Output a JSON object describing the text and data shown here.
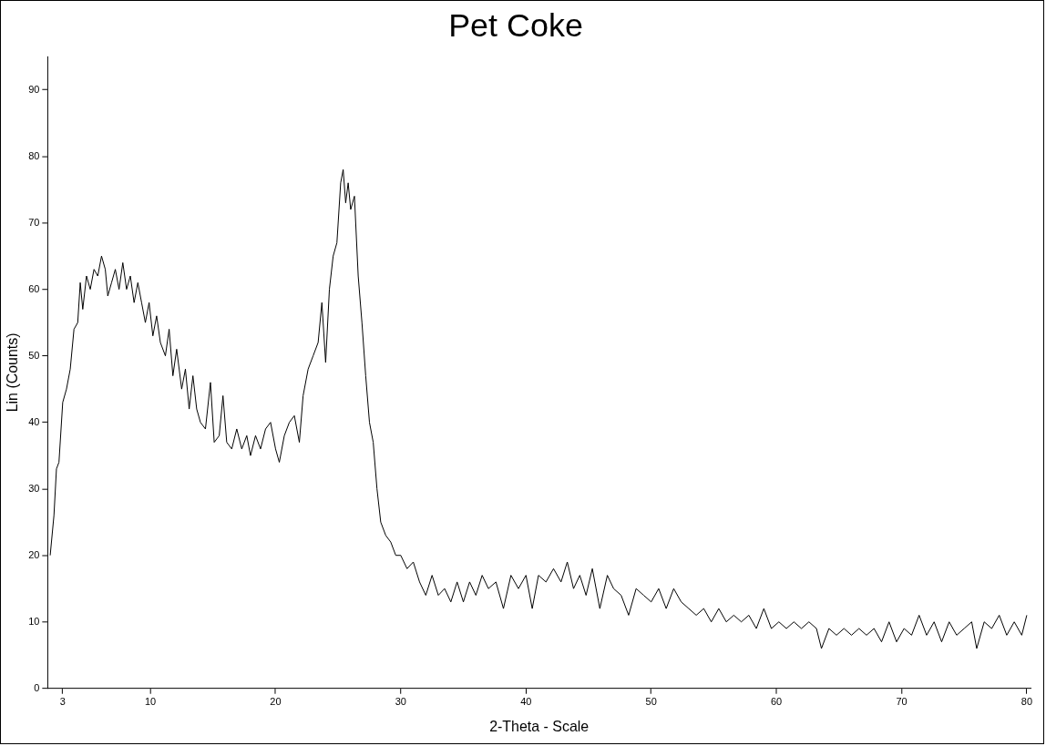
{
  "chart_data": {
    "type": "line",
    "title": "Pet Coke",
    "xlabel": "2-Theta - Scale",
    "ylabel": "Lin (Counts)",
    "xlim": [
      1.8,
      80.3
    ],
    "xticks": [
      3,
      10,
      20,
      30,
      40,
      50,
      60,
      70,
      80
    ],
    "ylim": [
      0,
      95
    ],
    "yticks": [
      0,
      10,
      20,
      30,
      40,
      50,
      60,
      70,
      80,
      90
    ],
    "grid": false,
    "legend": false,
    "marker": "none",
    "line_style": "solid",
    "series": [
      {
        "color": "#000000",
        "x": [
          2.0,
          2.3,
          2.5,
          2.7,
          3.0,
          3.3,
          3.6,
          3.9,
          4.2,
          4.4,
          4.6,
          4.9,
          5.2,
          5.5,
          5.8,
          6.1,
          6.4,
          6.6,
          6.9,
          7.2,
          7.5,
          7.8,
          8.1,
          8.4,
          8.7,
          9.0,
          9.3,
          9.6,
          9.9,
          10.2,
          10.5,
          10.8,
          11.2,
          11.5,
          11.8,
          12.1,
          12.5,
          12.8,
          13.1,
          13.4,
          13.7,
          14.0,
          14.4,
          14.8,
          15.1,
          15.5,
          15.8,
          16.1,
          16.5,
          16.9,
          17.3,
          17.7,
          18.0,
          18.4,
          18.8,
          19.2,
          19.6,
          20.0,
          20.3,
          20.7,
          21.1,
          21.5,
          21.9,
          22.2,
          22.6,
          23.0,
          23.4,
          23.7,
          24.0,
          24.3,
          24.6,
          24.9,
          25.2,
          25.4,
          25.6,
          25.8,
          26.0,
          26.3,
          26.6,
          26.9,
          27.2,
          27.5,
          27.8,
          28.1,
          28.4,
          28.8,
          29.2,
          29.6,
          30.0,
          30.5,
          31.0,
          31.5,
          32.0,
          32.5,
          33.0,
          33.5,
          34.0,
          34.5,
          35.0,
          35.5,
          36.0,
          36.5,
          37.0,
          37.6,
          38.2,
          38.8,
          39.4,
          40.0,
          40.5,
          41.0,
          41.6,
          42.2,
          42.8,
          43.3,
          43.8,
          44.3,
          44.8,
          45.3,
          45.9,
          46.5,
          47.0,
          47.6,
          48.2,
          48.8,
          49.4,
          50.0,
          50.6,
          51.2,
          51.8,
          52.4,
          53.0,
          53.6,
          54.2,
          54.8,
          55.4,
          56.0,
          56.6,
          57.2,
          57.8,
          58.4,
          59.0,
          59.6,
          60.2,
          60.8,
          61.4,
          62.0,
          62.6,
          63.2,
          63.6,
          64.2,
          64.8,
          65.4,
          66.0,
          66.6,
          67.2,
          67.8,
          68.4,
          69.0,
          69.6,
          70.2,
          70.8,
          71.4,
          72.0,
          72.6,
          73.2,
          73.8,
          74.4,
          75.0,
          75.6,
          76.0,
          76.6,
          77.2,
          77.8,
          78.4,
          79.0,
          79.6,
          80.0
        ],
        "values": [
          20,
          26,
          33,
          34,
          43,
          45,
          48,
          54,
          55,
          61,
          57,
          62,
          60,
          63,
          62,
          65,
          63,
          59,
          61,
          63,
          60,
          64,
          60,
          62,
          58,
          61,
          58,
          55,
          58,
          53,
          56,
          52,
          50,
          54,
          47,
          51,
          45,
          48,
          42,
          47,
          42,
          40,
          39,
          46,
          37,
          38,
          44,
          37,
          36,
          39,
          36,
          38,
          35,
          38,
          36,
          39,
          40,
          36,
          34,
          38,
          40,
          41,
          37,
          44,
          48,
          50,
          52,
          58,
          49,
          60,
          65,
          67,
          76,
          78,
          73,
          76,
          72,
          74,
          62,
          55,
          47,
          40,
          37,
          30,
          25,
          23,
          22,
          20,
          20,
          18,
          19,
          16,
          14,
          17,
          14,
          15,
          13,
          16,
          13,
          16,
          14,
          17,
          15,
          16,
          12,
          17,
          15,
          17,
          12,
          17,
          16,
          18,
          16,
          19,
          15,
          17,
          14,
          18,
          12,
          17,
          15,
          14,
          11,
          15,
          14,
          13,
          15,
          12,
          15,
          13,
          12,
          11,
          12,
          10,
          12,
          10,
          11,
          10,
          11,
          9,
          12,
          9,
          10,
          9,
          10,
          9,
          10,
          9,
          6,
          9,
          8,
          9,
          8,
          9,
          8,
          9,
          7,
          10,
          7,
          9,
          8,
          11,
          8,
          10,
          7,
          10,
          8,
          9,
          10,
          6,
          10,
          9,
          11,
          8,
          10,
          8,
          11
        ]
      }
    ]
  }
}
